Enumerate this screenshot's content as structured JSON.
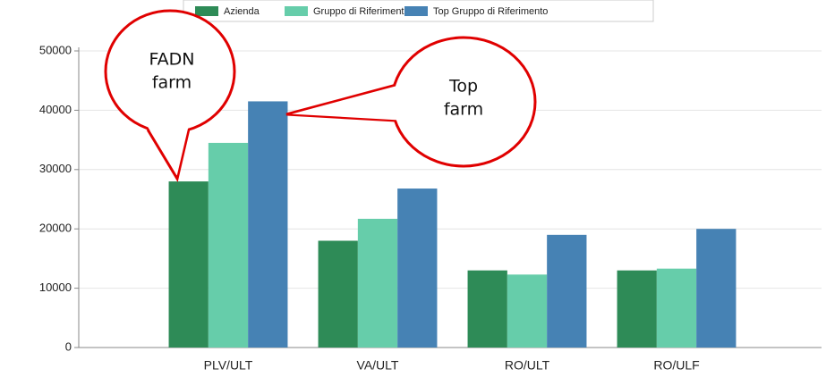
{
  "chart_data": {
    "type": "bar",
    "categories": [
      "PLV/ULT",
      "VA/ULT",
      "RO/ULT",
      "RO/ULF"
    ],
    "series": [
      {
        "name": "Azienda",
        "color": "#2e8b57",
        "values": [
          28000,
          18000,
          13000,
          13000
        ]
      },
      {
        "name": "Gruppo di Riferimento",
        "color": "#66cdaa",
        "values": [
          34500,
          21700,
          12300,
          13300
        ]
      },
      {
        "name": "Top Gruppo di Riferimento",
        "color": "#4682b4",
        "values": [
          41500,
          26800,
          19000,
          20000
        ]
      }
    ],
    "ylim": [
      0,
      50000
    ],
    "yticks": [
      0,
      10000,
      20000,
      30000,
      40000,
      50000
    ],
    "grid": true,
    "legend": "top",
    "annotations": [
      [
        "FADN",
        "farm"
      ],
      [
        "Top",
        "farm"
      ]
    ]
  }
}
